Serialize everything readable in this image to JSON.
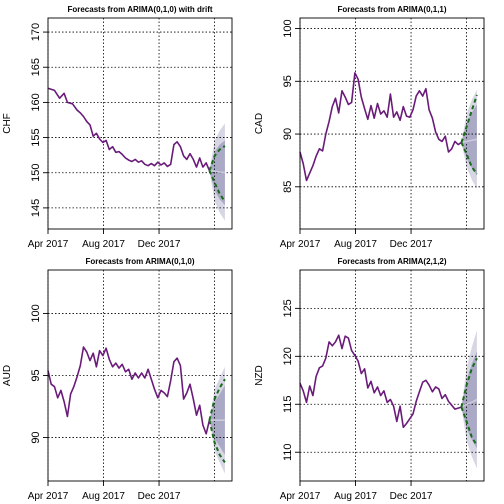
{
  "colors": {
    "series": "#6a1b7a",
    "forecast_mean": "#ccccdd",
    "band_80": "#aaaac6",
    "band_95": "#d6d6e4",
    "sim_paths": "#1a6b1a"
  },
  "chart_data": [
    {
      "type": "line",
      "title": "Forecasts from ARIMA(0,1,0) with drift",
      "ylabel": "CHF",
      "ylim": [
        142,
        172
      ],
      "yticks": [
        "145",
        "150",
        "155",
        "160",
        "165",
        "170"
      ],
      "xlim": [
        0,
        285
      ],
      "xticks": [
        {
          "pos": 0,
          "label": "Apr 2017"
        },
        {
          "pos": 86,
          "label": "Aug 2017"
        },
        {
          "pos": 172,
          "label": "Dec 2017"
        }
      ],
      "grid": true,
      "series": [
        {
          "x": [
            0,
            10,
            18,
            25,
            30,
            38,
            45,
            50,
            55,
            60,
            65,
            70,
            75,
            80,
            85,
            90,
            95,
            100,
            105,
            110,
            115,
            120,
            125,
            130,
            135,
            140,
            145,
            150,
            155,
            160,
            165,
            170,
            175,
            180,
            185,
            190,
            195,
            200,
            205,
            210,
            215,
            220,
            225,
            230,
            235,
            240,
            245,
            250
          ],
          "values": [
            162,
            161.7,
            160.6,
            161.3,
            160,
            159.8,
            158.9,
            158.5,
            158,
            157.3,
            156.8,
            155.2,
            155.6,
            154.8,
            154.3,
            154.6,
            153.3,
            153.7,
            152.9,
            153,
            152.6,
            152.1,
            151.8,
            151.6,
            151.9,
            151.5,
            151.7,
            151.2,
            151,
            151.3,
            151,
            151.5,
            151.1,
            151.4,
            150.9,
            151.2,
            154,
            154.4,
            153.7,
            152.4,
            151.9,
            152.7,
            151.9,
            150.8,
            152.1,
            150.8,
            151.4,
            150.3
          ]
        }
      ],
      "forecast": {
        "x": [
          250,
          258,
          266,
          274
        ],
        "mean": [
          150.3,
          150.2,
          150.1,
          150
        ],
        "lo80": [
          150.3,
          147.5,
          146.2,
          145.4
        ],
        "hi80": [
          150.3,
          153,
          154,
          154.6
        ],
        "lo95": [
          150.3,
          146,
          144.3,
          143.2
        ],
        "hi95": [
          150.3,
          154.5,
          156,
          157
        ],
        "path_low": [
          150.3,
          148.6,
          147,
          145.9
        ],
        "path_high": [
          150.3,
          152.4,
          153.3,
          153.8
        ]
      }
    },
    {
      "type": "line",
      "title": "Forecasts from ARIMA(0,1,1)",
      "ylabel": "CAD",
      "ylim": [
        81,
        101
      ],
      "yticks": [
        "85",
        "90",
        "95",
        "100"
      ],
      "xlim": [
        0,
        285
      ],
      "xticks": [
        {
          "pos": 0,
          "label": "Apr 2017"
        },
        {
          "pos": 86,
          "label": "Aug 2017"
        },
        {
          "pos": 172,
          "label": "Dec 2017"
        }
      ],
      "grid": true,
      "series": [
        {
          "x": [
            0,
            5,
            10,
            15,
            20,
            25,
            30,
            35,
            40,
            45,
            50,
            55,
            60,
            65,
            70,
            75,
            80,
            85,
            90,
            95,
            100,
            105,
            110,
            115,
            120,
            125,
            130,
            135,
            140,
            145,
            150,
            155,
            160,
            165,
            170,
            175,
            180,
            185,
            190,
            195,
            200,
            205,
            210,
            215,
            220,
            225,
            230,
            235,
            240,
            245,
            250
          ],
          "values": [
            88.3,
            87.2,
            85.6,
            86.3,
            87,
            87.9,
            88.6,
            88.4,
            90,
            91.2,
            92.6,
            93.4,
            92,
            94.1,
            93.5,
            92.8,
            93,
            95.8,
            95.2,
            93.5,
            92.4,
            91.4,
            92.7,
            91.5,
            92.9,
            91.9,
            92.2,
            91.6,
            93.8,
            91.6,
            92.1,
            91.3,
            92.6,
            91.7,
            91.6,
            92.3,
            93.6,
            94.1,
            93.6,
            94.3,
            92.3,
            91.5,
            90.2,
            89.5,
            89.3,
            89.8,
            88.3,
            88.6,
            89.3,
            89,
            89.2
          ]
        }
      ],
      "forecast": {
        "x": [
          250,
          258,
          266,
          274
        ],
        "mean": [
          89.2,
          89.3,
          89.4,
          89.5
        ],
        "lo80": [
          89.2,
          87.7,
          86.8,
          86.1
        ],
        "hi80": [
          89.2,
          91,
          92,
          92.8
        ],
        "lo95": [
          89.2,
          86.9,
          85.7,
          84.8
        ],
        "hi95": [
          89.2,
          91.9,
          93.2,
          94.2
        ],
        "path_low": [
          89.2,
          88.1,
          86.9,
          86.2
        ],
        "path_high": [
          89.2,
          90.7,
          92.2,
          93.7
        ]
      }
    },
    {
      "type": "line",
      "title": "Forecasts from ARIMA(0,1,0)",
      "ylabel": "AUD",
      "ylim": [
        86.5,
        103.5
      ],
      "yticks": [
        "90",
        "95",
        "100"
      ],
      "xlim": [
        0,
        285
      ],
      "xticks": [
        {
          "pos": 0,
          "label": "Apr 2017"
        },
        {
          "pos": 86,
          "label": "Aug 2017"
        },
        {
          "pos": 172,
          "label": "Dec 2017"
        }
      ],
      "grid": true,
      "series": [
        {
          "x": [
            0,
            5,
            10,
            15,
            20,
            25,
            30,
            35,
            40,
            45,
            50,
            55,
            60,
            65,
            70,
            75,
            80,
            85,
            90,
            95,
            100,
            105,
            110,
            115,
            120,
            125,
            130,
            135,
            140,
            145,
            150,
            155,
            160,
            165,
            170,
            175,
            180,
            185,
            190,
            195,
            200,
            205,
            210,
            215,
            220,
            225,
            230,
            235,
            240,
            245,
            250
          ],
          "values": [
            95.4,
            94.3,
            94.1,
            93.2,
            93.8,
            92.9,
            91.7,
            93.5,
            94.1,
            94.9,
            95.8,
            97.3,
            96.9,
            96.2,
            96.8,
            95.7,
            97,
            96.6,
            97.2,
            96.3,
            95.7,
            96,
            95.6,
            95.9,
            95.3,
            95.5,
            94.7,
            95.2,
            94.8,
            95.2,
            94.8,
            95.5,
            94.7,
            93.9,
            93.2,
            93.8,
            93.6,
            93.3,
            94.6,
            96.1,
            96.4,
            95.8,
            93.1,
            93.6,
            94.3,
            93.1,
            91.8,
            92.6,
            91,
            90.3,
            91.4
          ]
        }
      ],
      "forecast": {
        "x": [
          250,
          258,
          266,
          274
        ],
        "mean": [
          91.4,
          91.4,
          91.4,
          91.4
        ],
        "lo80": [
          91.4,
          89.9,
          89.3,
          88.6
        ],
        "hi80": [
          91.4,
          92.9,
          93.5,
          94.2
        ],
        "lo95": [
          91.4,
          88.9,
          88,
          87.1
        ],
        "hi95": [
          91.4,
          93.9,
          94.8,
          95.7
        ],
        "path_low": [
          91.4,
          89.6,
          88.6,
          88
        ],
        "path_high": [
          91.4,
          93.1,
          94,
          94.7
        ]
      }
    },
    {
      "type": "line",
      "title": "Forecasts from ARIMA(2,1,2)",
      "ylabel": "NZD",
      "ylim": [
        107,
        129
      ],
      "yticks": [
        "110",
        "115",
        "120",
        "125"
      ],
      "xlim": [
        0,
        285
      ],
      "xticks": [
        {
          "pos": 0,
          "label": "Apr 2017"
        },
        {
          "pos": 86,
          "label": "Aug 2017"
        },
        {
          "pos": 172,
          "label": "Dec 2017"
        }
      ],
      "grid": true,
      "series": [
        {
          "x": [
            0,
            5,
            10,
            15,
            20,
            25,
            30,
            35,
            40,
            45,
            50,
            55,
            60,
            65,
            70,
            75,
            80,
            85,
            90,
            95,
            100,
            105,
            110,
            115,
            120,
            125,
            130,
            135,
            140,
            145,
            150,
            155,
            160,
            165,
            170,
            175,
            180,
            185,
            190,
            195,
            200,
            205,
            210,
            215,
            220,
            225,
            230,
            235,
            240,
            245,
            250
          ],
          "values": [
            117.2,
            116.4,
            115.2,
            116.9,
            115.9,
            117.9,
            118.8,
            119,
            119.8,
            121.5,
            121.1,
            121.5,
            122.2,
            120.8,
            122.1,
            121.9,
            120.6,
            120.1,
            119.5,
            118.2,
            118.7,
            116.7,
            117.4,
            116.2,
            116.8,
            115.9,
            116.4,
            115.2,
            115.5,
            114.8,
            113.2,
            114.8,
            112.6,
            113,
            113.5,
            114,
            115.3,
            116.3,
            117.3,
            117.5,
            117,
            116.3,
            116.8,
            116.6,
            115.6,
            116,
            115.3,
            114.9,
            114.5,
            114.6,
            114.7
          ]
        }
      ],
      "forecast": {
        "x": [
          250,
          258,
          266,
          274
        ],
        "mean": [
          114.7,
          115,
          115.2,
          115.5
        ],
        "lo80": [
          114.7,
          112.5,
          111.3,
          110.4
        ],
        "hi80": [
          114.7,
          117.5,
          119.2,
          120.5
        ],
        "lo95": [
          114.7,
          111.2,
          109.6,
          108.3
        ],
        "hi95": [
          114.7,
          118.8,
          120.9,
          122.7
        ],
        "path_low": [
          114.7,
          113.2,
          111.6,
          110.7
        ],
        "path_high": [
          114.7,
          117,
          118.7,
          119.8
        ]
      }
    }
  ]
}
